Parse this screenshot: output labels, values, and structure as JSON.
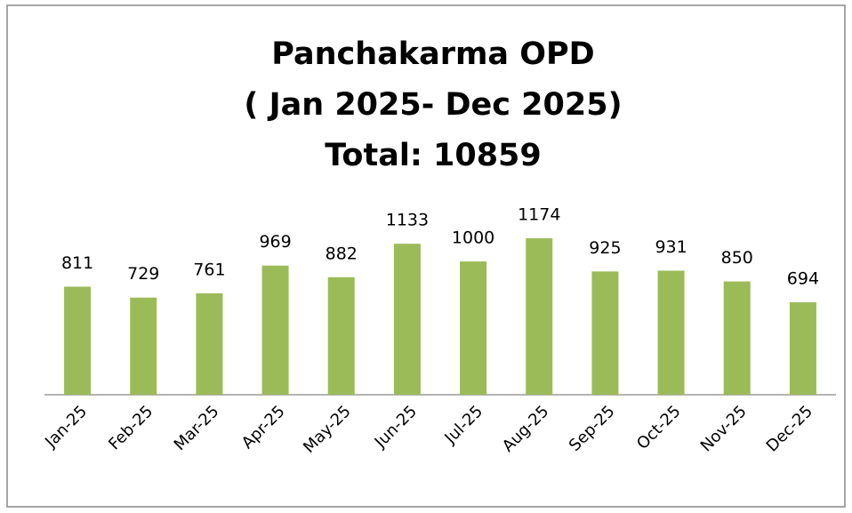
{
  "chart_data": {
    "type": "bar",
    "title": [
      "Panchakarma OPD",
      "( Jan 2025- Dec 2025)",
      "Total: 10859"
    ],
    "categories": [
      "Jan-25",
      "Feb-25",
      "Mar-25",
      "Apr-25",
      "May-25",
      "Jun-25",
      "Jul-25",
      "Aug-25",
      "Sep-25",
      "Oct-25",
      "Nov-25",
      "Dec-25"
    ],
    "values": [
      811,
      729,
      761,
      969,
      882,
      1133,
      1000,
      1174,
      925,
      931,
      850,
      694
    ],
    "color": "#9bbb59"
  }
}
